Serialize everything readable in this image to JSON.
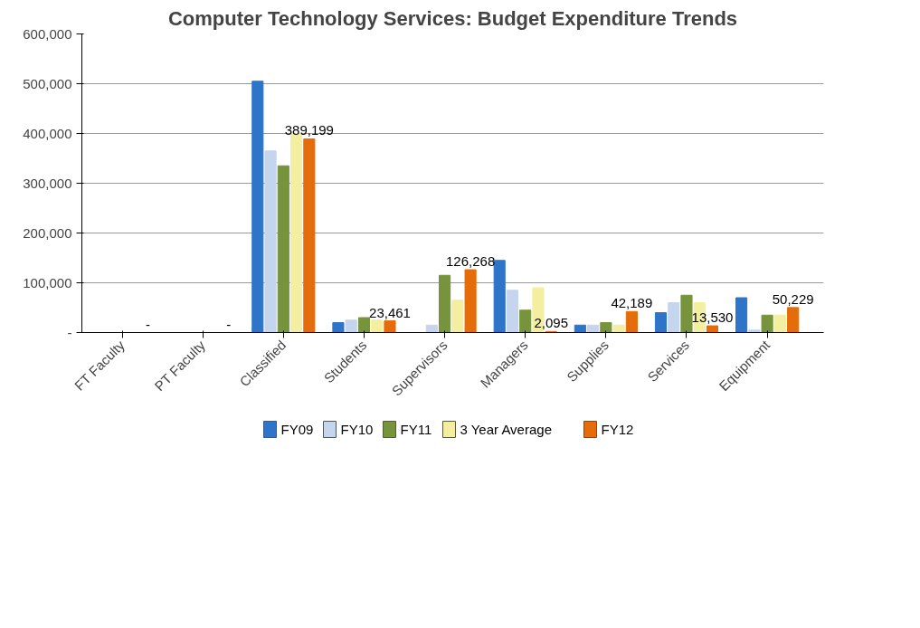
{
  "chart_data": {
    "type": "bar",
    "title": "Computer Technology Services: Budget Expenditure Trends",
    "categories": [
      "FT Faculty",
      "PT Faculty",
      "Classified",
      "Students",
      "Supervisors",
      "Managers",
      "Supplies",
      "Services",
      "Equipment"
    ],
    "series": [
      {
        "name": "FY09",
        "color": "#2e75c9",
        "values": [
          0,
          0,
          505000,
          20000,
          0,
          145000,
          15000,
          40000,
          70000
        ]
      },
      {
        "name": "FY10",
        "color": "#c6d5ee",
        "values": [
          0,
          0,
          365000,
          25000,
          15000,
          85000,
          15000,
          60000,
          5000
        ]
      },
      {
        "name": "FY11",
        "color": "#77933c",
        "values": [
          0,
          0,
          335000,
          30000,
          115000,
          45000,
          20000,
          75000,
          35000
        ]
      },
      {
        "name": "3 Year Average",
        "color": "#f3eea0",
        "values": [
          0,
          0,
          400000,
          25000,
          65000,
          90000,
          15000,
          60000,
          35000
        ]
      },
      {
        "name": "FY12",
        "color": "#e46c0a",
        "values": [
          0,
          0,
          389199,
          23461,
          126268,
          2095,
          42189,
          13530,
          50229
        ],
        "value_labels": [
          "-",
          "-",
          "389,199",
          "23,461",
          "126,268",
          "2,095",
          "42,189",
          "13,530",
          "50,229"
        ]
      }
    ],
    "ylim": [
      0,
      600000
    ],
    "yticks": [
      {
        "value": 0,
        "label": "-"
      },
      {
        "value": 100000,
        "label": "100,000"
      },
      {
        "value": 200000,
        "label": "200,000"
      },
      {
        "value": 300000,
        "label": "300,000"
      },
      {
        "value": 400000,
        "label": "400,000"
      },
      {
        "value": 500000,
        "label": "500,000"
      },
      {
        "value": 600000,
        "label": "600,000"
      }
    ],
    "grid": "y",
    "legend": "bottom"
  }
}
